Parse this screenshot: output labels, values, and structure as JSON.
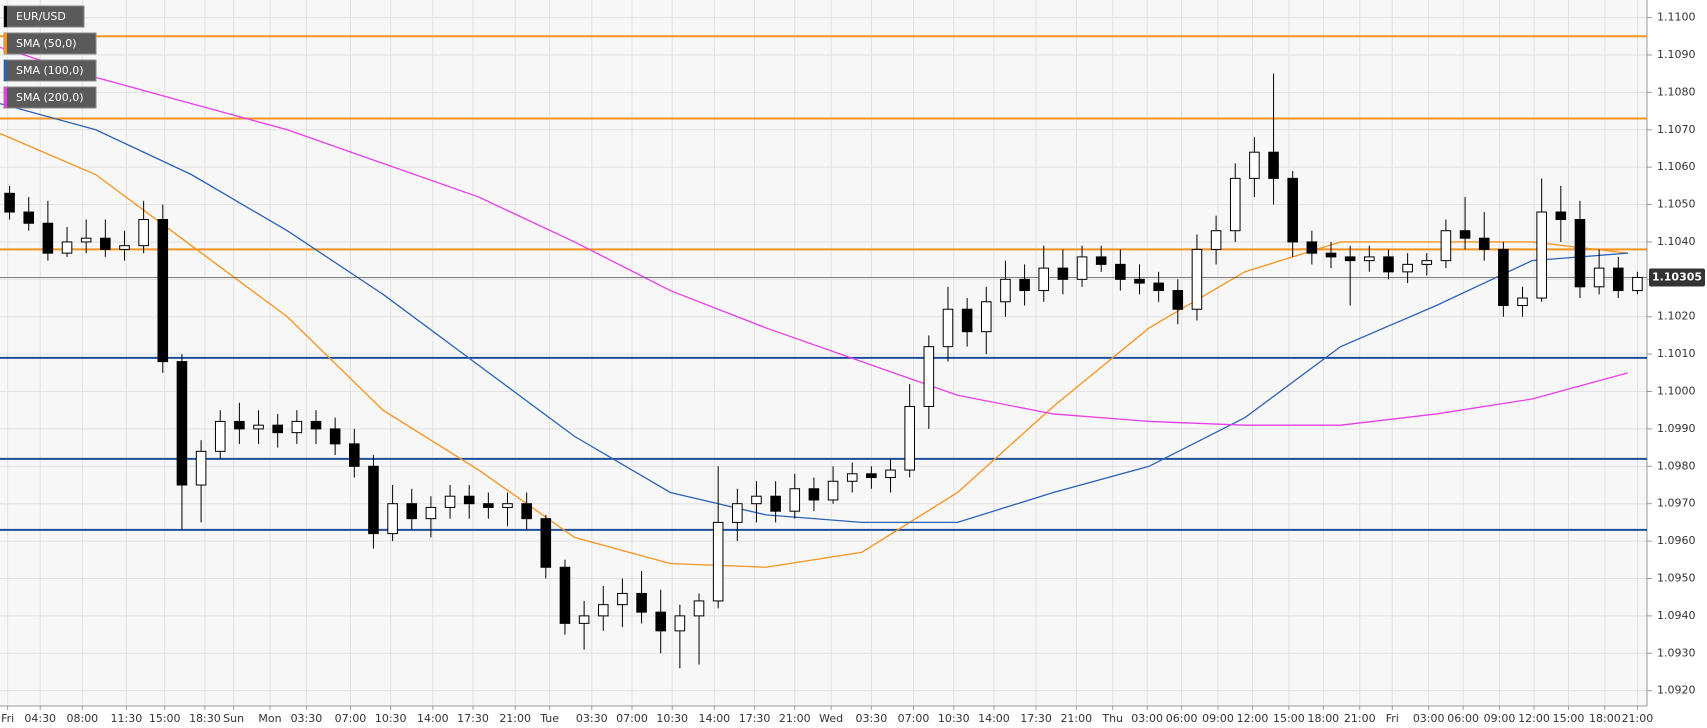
{
  "chart_data": {
    "type": "candlestick",
    "series": [
      {
        "name": "EUR/USD",
        "color": "#000000",
        "x": [
          0.5,
          1.5,
          2.5,
          3.5,
          4.5,
          5.5,
          6.5,
          7.5,
          8.5,
          9.5,
          10.5,
          11.5,
          12.5,
          13.5,
          14.5,
          15.5,
          16.5,
          17.5,
          18.5,
          19.5,
          20.5,
          21.5,
          22.5,
          23.5,
          24.5,
          25.5,
          26.5,
          27.5,
          28.5,
          29.5,
          30.5,
          31.5,
          32.5,
          33.5,
          34.5,
          35.5,
          36.5,
          37.5,
          38.5,
          39.5,
          40.5,
          41.5,
          42.5,
          43.5,
          44.5,
          45.5,
          46.5,
          47.5,
          48.5,
          49.5,
          50.5,
          51.5,
          52.5,
          53.5,
          54.5,
          55.5,
          56.5,
          57.5,
          58.5,
          59.5,
          60.5,
          61.5,
          62.5,
          63.5,
          64.5,
          65.5,
          66.5,
          67.5,
          68.5,
          69.5,
          70.5,
          71.5,
          72.5,
          73.5,
          74.5,
          75.5,
          76.5,
          77.5,
          78.5,
          79.5,
          80.5,
          81.5,
          82.5,
          83.5,
          84.5,
          85.5
        ],
        "open": [
          1.1053,
          1.1048,
          1.1045,
          1.1037,
          1.104,
          1.1041,
          1.1038,
          1.1039,
          1.1046,
          1.1008,
          1.0975,
          1.0984,
          1.0992,
          1.099,
          1.0991,
          1.0989,
          1.0992,
          1.099,
          1.0986,
          1.098,
          1.0962,
          1.097,
          1.0966,
          1.0969,
          1.0972,
          1.097,
          1.0969,
          1.097,
          1.0966,
          1.0953,
          1.0938,
          1.094,
          1.0943,
          1.0946,
          1.0941,
          1.0936,
          1.094,
          1.0944,
          1.0965,
          1.097,
          1.0972,
          1.0968,
          1.0974,
          1.0971,
          1.0976,
          1.0978,
          1.0977,
          1.0979,
          1.0996,
          1.1012,
          1.1022,
          1.1016,
          1.1024,
          1.103,
          1.1027,
          1.1033,
          1.103,
          1.1036,
          1.1034,
          1.103,
          1.1029,
          1.1027,
          1.1022,
          1.1038,
          1.1043,
          1.1057,
          1.1064,
          1.1057,
          1.104,
          1.1037,
          1.1036,
          1.1035,
          1.1036,
          1.1032,
          1.1034,
          1.1035,
          1.1043,
          1.1041,
          1.1038,
          1.1023,
          1.1025,
          1.1048,
          1.1046,
          1.1028,
          1.1033,
          1.1027
        ],
        "high": [
          1.1055,
          1.1052,
          1.1051,
          1.1044,
          1.1046,
          1.1046,
          1.1043,
          1.1051,
          1.105,
          1.101,
          1.0987,
          1.0995,
          1.0997,
          1.0995,
          1.0994,
          1.0995,
          1.0995,
          1.0993,
          1.099,
          1.0983,
          1.0975,
          1.0974,
          1.0972,
          1.0975,
          1.0975,
          1.0973,
          1.0973,
          1.0973,
          1.0967,
          1.0955,
          1.0944,
          1.0948,
          1.095,
          1.0952,
          1.0947,
          1.0943,
          1.0946,
          1.098,
          1.0974,
          1.0976,
          1.0976,
          1.0978,
          1.0977,
          1.098,
          1.0981,
          1.098,
          1.0982,
          1.1002,
          1.1015,
          1.1028,
          1.1025,
          1.1028,
          1.1035,
          1.1034,
          1.1039,
          1.1038,
          1.1039,
          1.1039,
          1.1038,
          1.1034,
          1.1032,
          1.103,
          1.1042,
          1.1047,
          1.1061,
          1.1068,
          1.1085,
          1.1059,
          1.1043,
          1.104,
          1.1039,
          1.1039,
          1.1038,
          1.1037,
          1.1037,
          1.1046,
          1.1052,
          1.1048,
          1.104,
          1.1028,
          1.1057,
          1.1055,
          1.1051,
          1.1038,
          1.1036,
          1.1032
        ],
        "low": [
          1.1046,
          1.1043,
          1.1035,
          1.1036,
          1.1037,
          1.1036,
          1.1035,
          1.1037,
          1.1005,
          1.0963,
          1.0965,
          1.0982,
          1.0986,
          1.0986,
          1.0985,
          1.0986,
          1.0986,
          1.0983,
          1.0977,
          1.0958,
          1.096,
          1.0963,
          1.0961,
          1.0966,
          1.0966,
          1.0966,
          1.0964,
          1.0963,
          1.095,
          1.0935,
          1.0931,
          1.0936,
          1.0937,
          1.0938,
          1.093,
          1.0926,
          1.0927,
          1.0942,
          1.096,
          1.0965,
          1.0965,
          1.0966,
          1.0968,
          1.097,
          1.0973,
          1.0974,
          1.0973,
          1.0977,
          1.099,
          1.1008,
          1.1012,
          1.101,
          1.102,
          1.1023,
          1.1024,
          1.1026,
          1.1028,
          1.1032,
          1.1027,
          1.1026,
          1.1024,
          1.1018,
          1.1019,
          1.1034,
          1.104,
          1.1052,
          1.105,
          1.1036,
          1.1034,
          1.1033,
          1.1023,
          1.1032,
          1.103,
          1.1029,
          1.1031,
          1.1033,
          1.1038,
          1.1035,
          1.102,
          1.102,
          1.1024,
          1.104,
          1.1025,
          1.1026,
          1.1025,
          1.1026
        ],
        "close": [
          1.1048,
          1.1045,
          1.1037,
          1.104,
          1.1041,
          1.1038,
          1.1039,
          1.1046,
          1.1008,
          1.0975,
          1.0984,
          1.0992,
          1.099,
          1.0991,
          1.0989,
          1.0992,
          1.099,
          1.0986,
          1.098,
          1.0962,
          1.097,
          1.0966,
          1.0969,
          1.0972,
          1.097,
          1.0969,
          1.097,
          1.0966,
          1.0953,
          1.0938,
          1.094,
          1.0943,
          1.0946,
          1.0941,
          1.0936,
          1.094,
          1.0944,
          1.0965,
          1.097,
          1.0972,
          1.0968,
          1.0974,
          1.0971,
          1.0976,
          1.0978,
          1.0977,
          1.0979,
          1.0996,
          1.1012,
          1.1022,
          1.1016,
          1.1024,
          1.103,
          1.1027,
          1.1033,
          1.103,
          1.1036,
          1.1034,
          1.103,
          1.1029,
          1.1027,
          1.1022,
          1.1038,
          1.1043,
          1.1057,
          1.1064,
          1.1057,
          1.104,
          1.1037,
          1.1036,
          1.1035,
          1.1036,
          1.1032,
          1.1034,
          1.1035,
          1.1043,
          1.1041,
          1.1038,
          1.1023,
          1.1025,
          1.1048,
          1.1046,
          1.1028,
          1.1033,
          1.1027,
          1.10305
        ]
      }
    ],
    "overlays": [
      {
        "name": "SMA (50,0)",
        "color": "#f7931e",
        "x": [
          0,
          5,
          10,
          15,
          20,
          25,
          30,
          35,
          40,
          45,
          50,
          55,
          60,
          65,
          70,
          75,
          80,
          85
        ],
        "values": [
          1.1069,
          1.1058,
          1.1039,
          1.102,
          1.0995,
          1.0979,
          1.0961,
          1.0954,
          1.0953,
          1.0957,
          1.0973,
          1.0996,
          1.1017,
          1.1032,
          1.104,
          1.104,
          1.104,
          1.1037
        ]
      },
      {
        "name": "SMA (100,0)",
        "color": "#2a62b5",
        "x": [
          0,
          5,
          10,
          15,
          20,
          25,
          30,
          35,
          40,
          45,
          50,
          55,
          60,
          65,
          70,
          75,
          80,
          85
        ],
        "values": [
          1.1077,
          1.107,
          1.1058,
          1.1043,
          1.1026,
          1.1007,
          1.0988,
          1.0973,
          1.0967,
          1.0965,
          1.0965,
          1.0973,
          1.098,
          1.0993,
          1.1012,
          1.1023,
          1.1035,
          1.1037
        ]
      },
      {
        "name": "SMA (200,0)",
        "color": "#e93de9",
        "x": [
          0,
          5,
          10,
          15,
          20,
          25,
          30,
          35,
          40,
          45,
          50,
          55,
          60,
          65,
          70,
          75,
          80,
          85
        ],
        "values": [
          1.1092,
          1.1084,
          1.1077,
          1.107,
          1.1061,
          1.1052,
          1.104,
          1.1027,
          1.1017,
          1.1008,
          1.0999,
          1.0994,
          1.0992,
          1.0991,
          1.0991,
          1.0994,
          1.0998,
          1.1005
        ]
      }
    ],
    "levels": [
      {
        "value": 1.1095,
        "color": "#f7931e"
      },
      {
        "value": 1.1073,
        "color": "#f7931e"
      },
      {
        "value": 1.1038,
        "color": "#f7931e"
      },
      {
        "value": 1.1009,
        "color": "#1f4f9a"
      },
      {
        "value": 1.0982,
        "color": "#1f4f9a"
      },
      {
        "value": 1.0963,
        "color": "#1f4f9a"
      }
    ],
    "last_price": 1.10305,
    "xlim": [
      0,
      86
    ],
    "ylim": [
      1.09159,
      1.11047
    ],
    "xticks": [
      {
        "value": 0.4,
        "label": "Fri"
      },
      {
        "value": 2.1,
        "label": "04:30"
      },
      {
        "value": 4.3,
        "label": "08:00"
      },
      {
        "value": 6.6,
        "label": "11:30"
      },
      {
        "value": 8.6,
        "label": "15:00"
      },
      {
        "value": 10.7,
        "label": "18:30"
      },
      {
        "value": 12.2,
        "label": "Sun"
      },
      {
        "value": 14.1,
        "label": "Mon"
      },
      {
        "value": 16,
        "label": "03:30"
      },
      {
        "value": 18.3,
        "label": "07:00"
      },
      {
        "value": 20.4,
        "label": "10:30"
      },
      {
        "value": 22.6,
        "label": "14:00"
      },
      {
        "value": 24.7,
        "label": "17:30"
      },
      {
        "value": 26.9,
        "label": "21:00"
      },
      {
        "value": 28.7,
        "label": "Tue"
      },
      {
        "value": 30.9,
        "label": "03:30"
      },
      {
        "value": 33,
        "label": "07:00"
      },
      {
        "value": 35.1,
        "label": "10:30"
      },
      {
        "value": 37.3,
        "label": "14:00"
      },
      {
        "value": 39.4,
        "label": "17:30"
      },
      {
        "value": 41.5,
        "label": "21:00"
      },
      {
        "value": 43.4,
        "label": "Wed"
      },
      {
        "value": 45.5,
        "label": "03:30"
      },
      {
        "value": 47.7,
        "label": "07:00"
      },
      {
        "value": 49.8,
        "label": "10:30"
      },
      {
        "value": 51.9,
        "label": "14:00"
      },
      {
        "value": 54.1,
        "label": "17:30"
      },
      {
        "value": 56.2,
        "label": "21:00"
      },
      {
        "value": 58.1,
        "label": "Thu"
      },
      {
        "value": 59.9,
        "label": "03:00"
      },
      {
        "value": 61.7,
        "label": "06:00"
      },
      {
        "value": 63.6,
        "label": "09:00"
      },
      {
        "value": 65.4,
        "label": "12:00"
      },
      {
        "value": 67.3,
        "label": "15:00"
      },
      {
        "value": 69.1,
        "label": "18:00"
      },
      {
        "value": 71,
        "label": "21:00"
      },
      {
        "value": 72.7,
        "label": "Fri"
      },
      {
        "value": 74.6,
        "label": "03:00"
      },
      {
        "value": 76.4,
        "label": "06:00"
      },
      {
        "value": 78.3,
        "label": "09:00"
      },
      {
        "value": 80.1,
        "label": "12:00"
      },
      {
        "value": 81.9,
        "label": "15:00"
      },
      {
        "value": 83.8,
        "label": "18:00"
      },
      {
        "value": 85.5,
        "label": "21:00"
      }
    ],
    "yticks": [
      {
        "value": 1.092,
        "label": "1.0920"
      },
      {
        "value": 1.093,
        "label": "1.0930"
      },
      {
        "value": 1.094,
        "label": "1.0940"
      },
      {
        "value": 1.095,
        "label": "1.0950"
      },
      {
        "value": 1.096,
        "label": "1.0960"
      },
      {
        "value": 1.097,
        "label": "1.0970"
      },
      {
        "value": 1.098,
        "label": "1.0980"
      },
      {
        "value": 1.099,
        "label": "1.0990"
      },
      {
        "value": 1.1,
        "label": "1.1000"
      },
      {
        "value": 1.101,
        "label": "1.1010"
      },
      {
        "value": 1.102,
        "label": "1.1020"
      },
      {
        "value": 1.103,
        "label": "1.1030"
      },
      {
        "value": 1.104,
        "label": "1.1040"
      },
      {
        "value": 1.105,
        "label": "1.1050"
      },
      {
        "value": 1.106,
        "label": "1.1060"
      },
      {
        "value": 1.107,
        "label": "1.1070"
      },
      {
        "value": 1.108,
        "label": "1.1080"
      },
      {
        "value": 1.109,
        "label": "1.1090"
      },
      {
        "value": 1.11,
        "label": "1.1100"
      }
    ],
    "grid": true
  }
}
